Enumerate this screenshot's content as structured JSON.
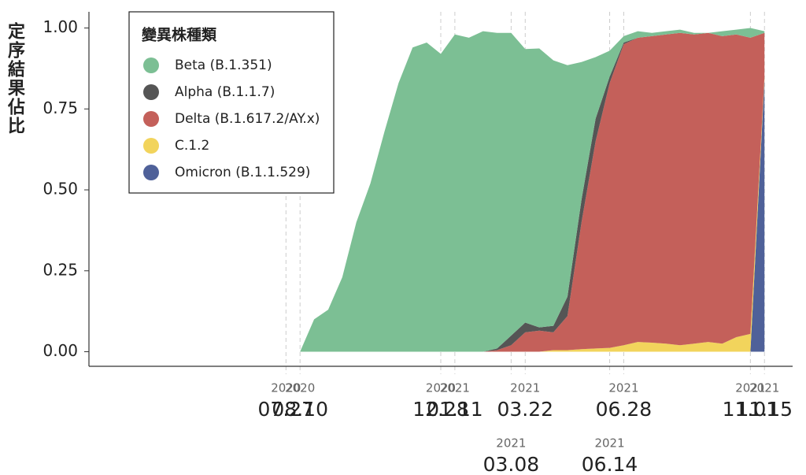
{
  "chart_data": {
    "type": "stacked_area",
    "y_label": "定序結果佔比",
    "legend_title": "變異株種類",
    "legend": "upper left",
    "x": [
      "2020-08-10",
      "2020-08-24",
      "2020-09-07",
      "2020-09-21",
      "2020-10-05",
      "2020-10-19",
      "2020-11-02",
      "2020-11-16",
      "2020-11-30",
      "2020-12-14",
      "2020-12-28",
      "2021-01-11",
      "2021-01-25",
      "2021-02-08",
      "2021-02-22",
      "2021-03-08",
      "2021-03-22",
      "2021-04-05",
      "2021-04-19",
      "2021-05-03",
      "2021-05-17",
      "2021-05-31",
      "2021-06-14",
      "2021-06-28",
      "2021-07-12",
      "2021-07-26",
      "2021-08-09",
      "2021-08-23",
      "2021-09-06",
      "2021-09-20",
      "2021-10-04",
      "2021-10-18",
      "2021-11-01",
      "2021-11-15"
    ],
    "series": [
      {
        "name": "Beta (B.1.351)",
        "color": "#7cbf94",
        "values": [
          0,
          0.1,
          0.13,
          0.23,
          0.4,
          0.52,
          0.68,
          0.83,
          0.94,
          0.955,
          0.92,
          0.98,
          0.97,
          0.99,
          0.975,
          0.935,
          0.845,
          0.862,
          0.82,
          0.715,
          0.425,
          0.19,
          0.08,
          0.02,
          0.02,
          0.01,
          0.01,
          0.01,
          0.005,
          0,
          0.015,
          0.015,
          0.03,
          0.005
        ]
      },
      {
        "name": "Alpha (B.1.1.7)",
        "color": "#555555",
        "values": [
          0,
          0,
          0,
          0,
          0,
          0,
          0,
          0,
          0,
          0,
          0,
          0,
          0,
          0,
          0.005,
          0.03,
          0.03,
          0.01,
          0.02,
          0.06,
          0.07,
          0.07,
          0.02,
          0.005,
          0,
          0,
          0,
          0,
          0,
          0,
          0,
          0,
          0,
          0
        ]
      },
      {
        "name": "Delta (B.1.617.2/AY.x)",
        "color": "#c4605a",
        "values": [
          0,
          0,
          0,
          0,
          0,
          0,
          0,
          0,
          0,
          0,
          0,
          0,
          0,
          0,
          0.005,
          0.02,
          0.06,
          0.065,
          0.055,
          0.105,
          0.392,
          0.64,
          0.818,
          0.93,
          0.94,
          0.947,
          0.955,
          0.965,
          0.955,
          0.955,
          0.95,
          0.935,
          0.915,
          0.135
        ]
      },
      {
        "name": "C.1.2",
        "color": "#f2d45c",
        "values": [
          0,
          0,
          0,
          0,
          0,
          0,
          0,
          0,
          0,
          0,
          0,
          0,
          0,
          0,
          0,
          0,
          0,
          0,
          0.005,
          0.005,
          0.008,
          0.01,
          0.012,
          0.02,
          0.03,
          0.028,
          0.025,
          0.02,
          0.025,
          0.03,
          0.025,
          0.045,
          0.055,
          0.01
        ]
      },
      {
        "name": "Omicron (B.1.1.529)",
        "color": "#4f6199",
        "values": [
          0,
          0,
          0,
          0,
          0,
          0,
          0,
          0,
          0,
          0,
          0,
          0,
          0,
          0,
          0,
          0,
          0,
          0,
          0,
          0,
          0,
          0,
          0,
          0,
          0,
          0,
          0,
          0,
          0,
          0,
          0,
          0,
          0,
          0.84
        ]
      }
    ],
    "xlim": [
      "2020-01-13",
      "2021-12-13"
    ],
    "xticks": [
      {
        "value": "2020-07-27",
        "label": [
          "2020",
          "07.27"
        ]
      },
      {
        "value": "2020-08-10",
        "label": [
          "2020",
          "08.10"
        ]
      },
      {
        "value": "2020-12-28",
        "label": [
          "2020",
          "12.28"
        ]
      },
      {
        "value": "2021-01-11",
        "label": [
          "2021",
          "01.11"
        ]
      },
      {
        "value": "2021-03-08",
        "label": [
          "2021",
          "03.08"
        ]
      },
      {
        "value": "2021-03-22",
        "label": [
          "2021",
          "03.22"
        ]
      },
      {
        "value": "2021-06-14",
        "label": [
          "2021",
          "06.14"
        ]
      },
      {
        "value": "2021-06-28",
        "label": [
          "2021",
          "06.28"
        ]
      },
      {
        "value": "2021-11-01",
        "label": [
          "2021",
          "11.01"
        ]
      },
      {
        "value": "2021-11-15",
        "label": [
          "2021",
          "11.15"
        ]
      }
    ],
    "ylim": [
      -0.045,
      1.05
    ],
    "yticks": [
      {
        "value": 0,
        "label": "0.00"
      },
      {
        "value": 0.25,
        "label": "0.25"
      },
      {
        "value": 0.5,
        "label": "0.50"
      },
      {
        "value": 0.75,
        "label": "0.75"
      },
      {
        "value": 1,
        "label": "1.00"
      }
    ]
  }
}
